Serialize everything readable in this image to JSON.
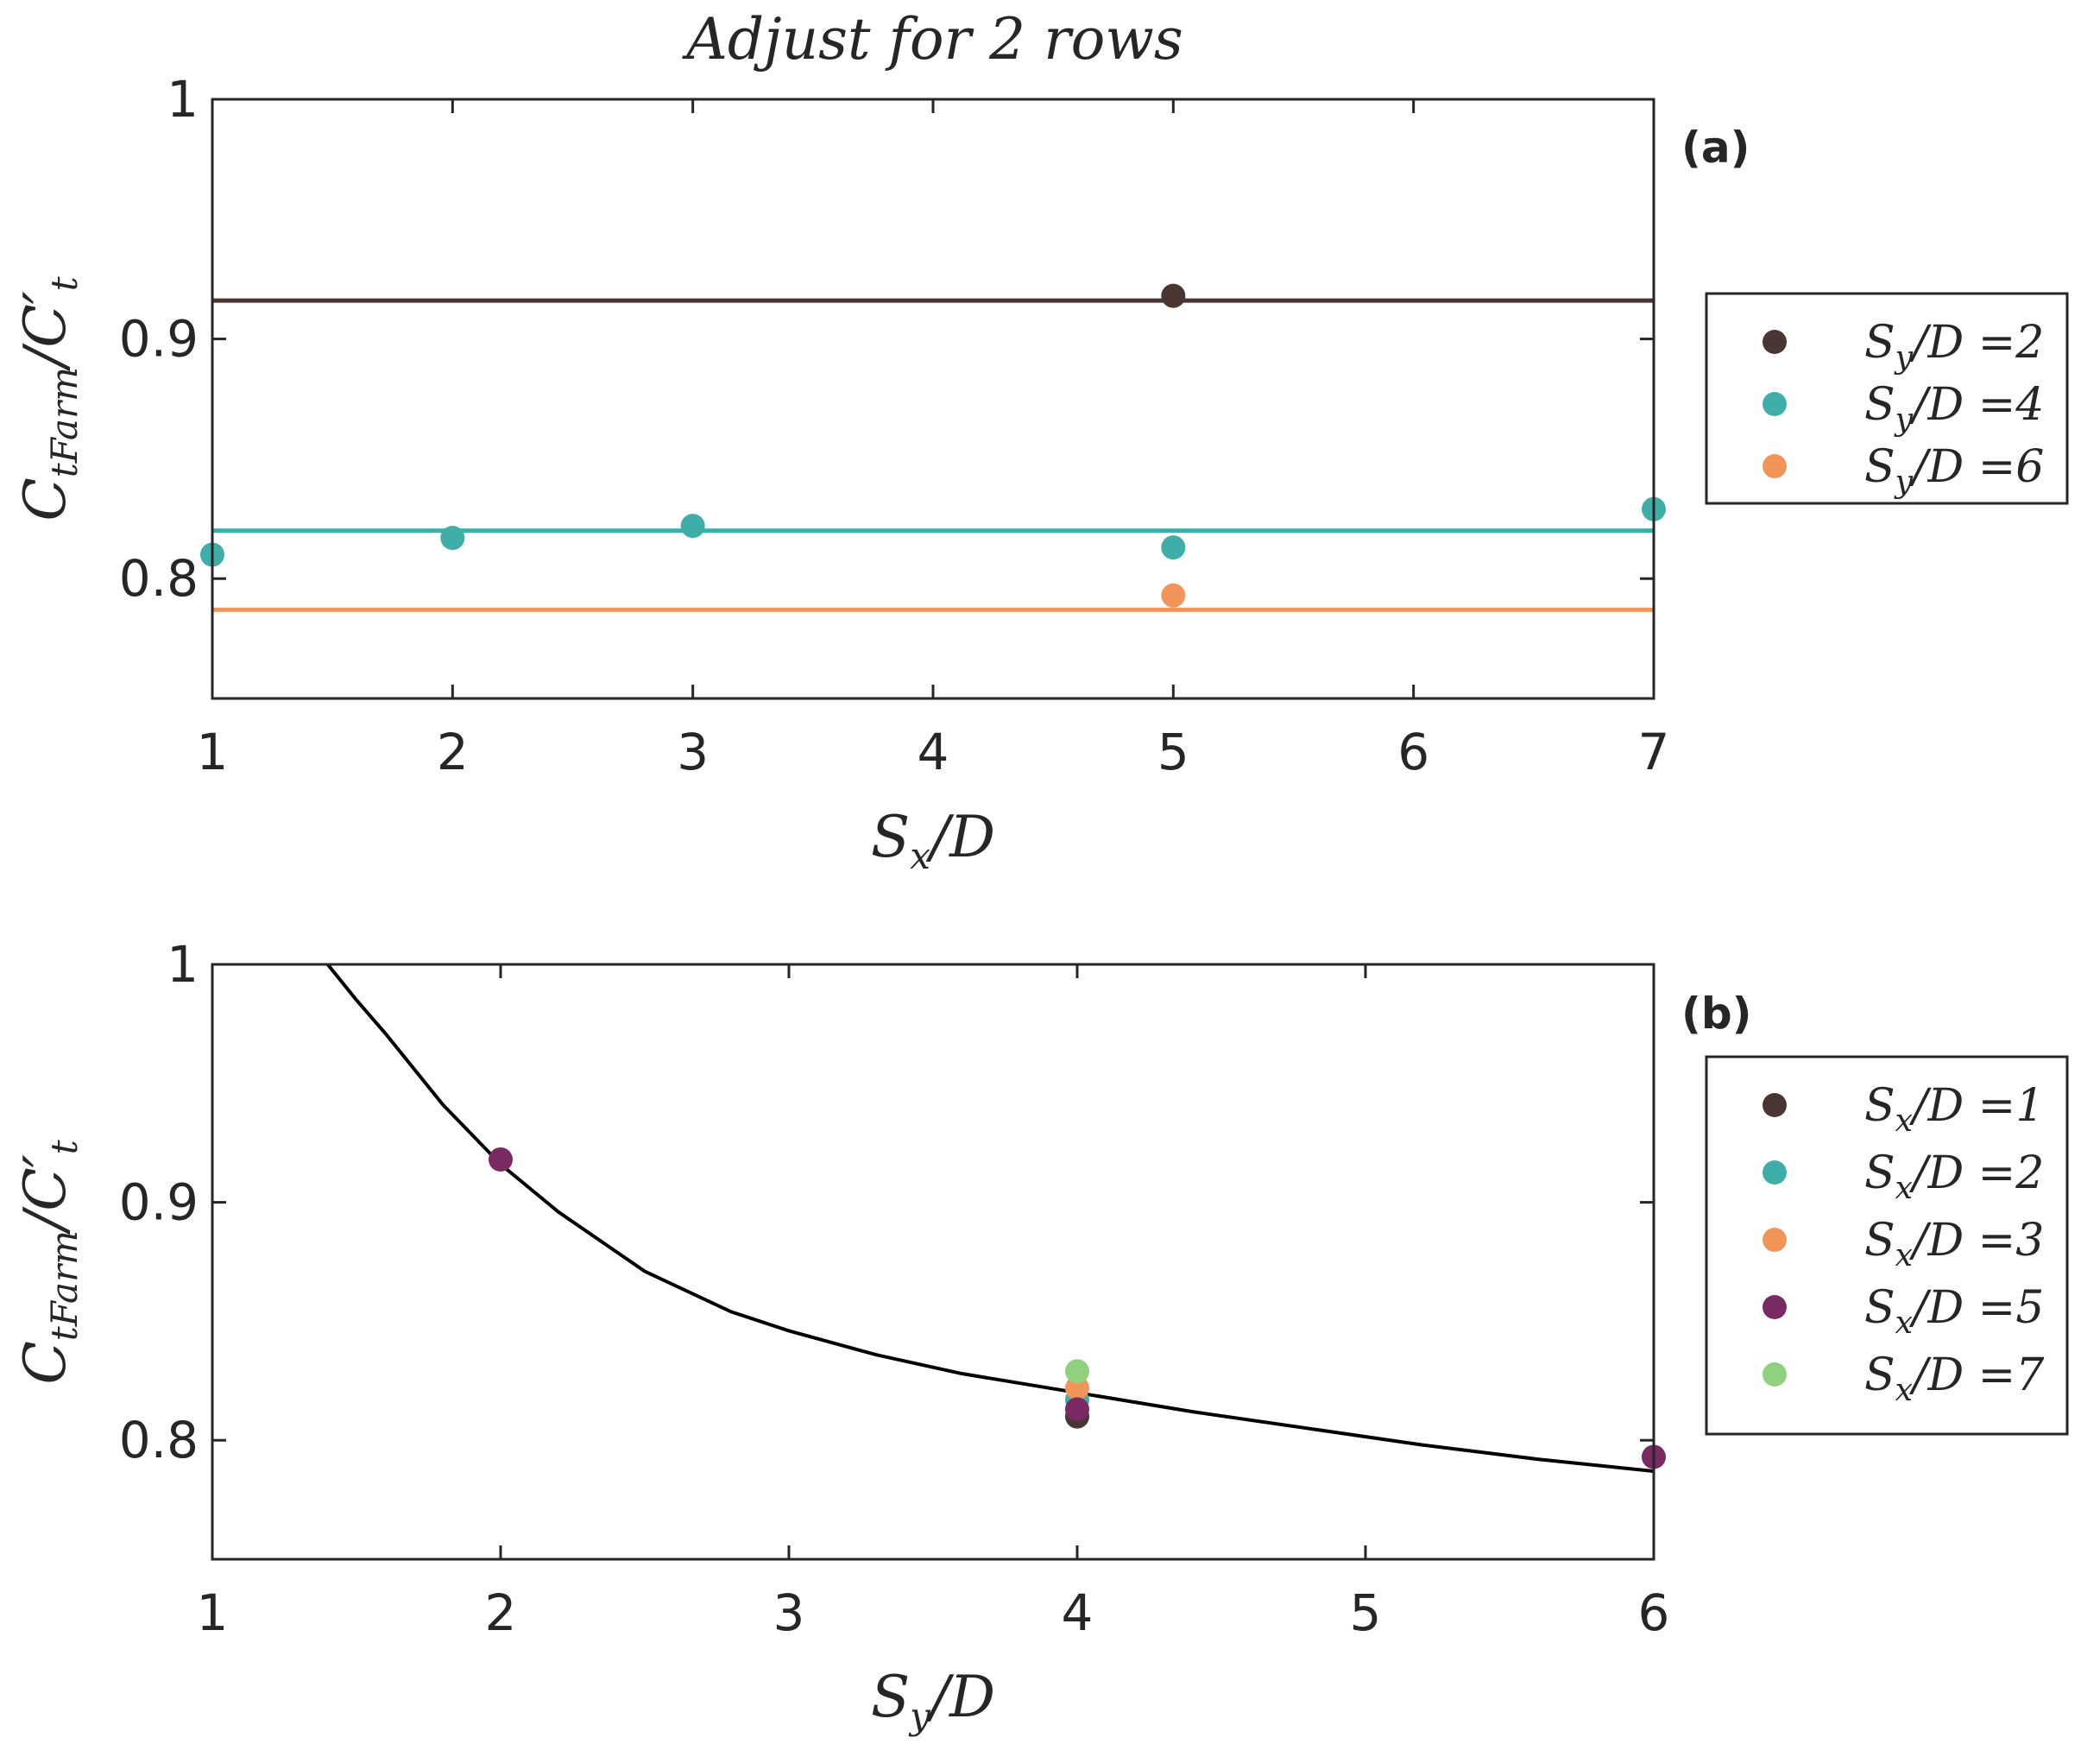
{
  "figure_title": "Adjust for 2 rows",
  "colors": {
    "dark": "#4a3535",
    "teal": "#3fada8",
    "orange": "#f2955b",
    "purple": "#7a2a62",
    "green": "#8fd17f",
    "curve": "#000000"
  },
  "chart_data": [
    {
      "type": "scatter",
      "panel_label": "(a)",
      "xlabel": "S_x/D",
      "ylabel": "C_tFarm/C'_t",
      "xlim": [
        1,
        7
      ],
      "ylim": [
        0.75,
        1.0
      ],
      "xticks": [
        "1",
        "2",
        "3",
        "4",
        "5",
        "6",
        "7"
      ],
      "yticks": [
        "0.8",
        "0.9",
        "1"
      ],
      "legend": {
        "position": "outside-right"
      },
      "series": [
        {
          "name": "S_y/D =2",
          "legend_label": "S_y/D =2",
          "color_key": "dark",
          "points": [
            [
              5,
              0.918
            ]
          ],
          "fit": 0.916
        },
        {
          "name": "S_y/D =4",
          "legend_label": "S_y/D =4",
          "color_key": "teal",
          "points": [
            [
              1,
              0.81
            ],
            [
              2,
              0.817
            ],
            [
              3,
              0.822
            ],
            [
              5,
              0.813
            ],
            [
              7,
              0.829
            ]
          ],
          "fit": 0.82
        },
        {
          "name": "S_y/D =6",
          "legend_label": "S_y/D =6",
          "color_key": "orange",
          "points": [
            [
              5,
              0.793
            ]
          ],
          "fit": 0.787
        }
      ]
    },
    {
      "type": "scatter",
      "panel_label": "(b)",
      "xlabel": "S_y/D",
      "ylabel": "C_tFarm/C'_t",
      "xlim": [
        1,
        6
      ],
      "ylim": [
        0.75,
        1.0
      ],
      "xticks": [
        "1",
        "2",
        "3",
        "4",
        "5",
        "6"
      ],
      "yticks": [
        "0.8",
        "0.9",
        "1"
      ],
      "legend": {
        "position": "outside-right"
      },
      "series": [
        {
          "name": "S_x/D =1",
          "legend_label": "S_x/D =1",
          "color_key": "dark",
          "points": [
            [
              4,
              0.81
            ]
          ]
        },
        {
          "name": "S_x/D =2",
          "legend_label": "S_x/D =2",
          "color_key": "teal",
          "points": [
            [
              4,
              0.817
            ]
          ]
        },
        {
          "name": "S_x/D =3",
          "legend_label": "S_x/D =3",
          "color_key": "orange",
          "points": [
            [
              4,
              0.822
            ]
          ]
        },
        {
          "name": "S_x/D =5",
          "legend_label": "S_x/D =5",
          "color_key": "purple",
          "points": [
            [
              2,
              0.918
            ],
            [
              4,
              0.813
            ],
            [
              6,
              0.793
            ]
          ]
        },
        {
          "name": "S_x/D =7",
          "legend_label": "S_x/D =7",
          "color_key": "green",
          "points": [
            [
              4,
              0.829
            ]
          ]
        }
      ],
      "fit_curve": {
        "color_key": "curve",
        "x": [
          1.4,
          1.5,
          1.6,
          1.8,
          2.0,
          2.2,
          2.5,
          2.8,
          3.0,
          3.3,
          3.6,
          4.0,
          4.4,
          4.8,
          5.2,
          5.6,
          6.0
        ],
        "y": [
          1.0,
          0.985,
          0.971,
          0.941,
          0.916,
          0.896,
          0.871,
          0.854,
          0.846,
          0.836,
          0.828,
          0.82,
          0.812,
          0.805,
          0.798,
          0.792,
          0.787
        ]
      }
    }
  ]
}
